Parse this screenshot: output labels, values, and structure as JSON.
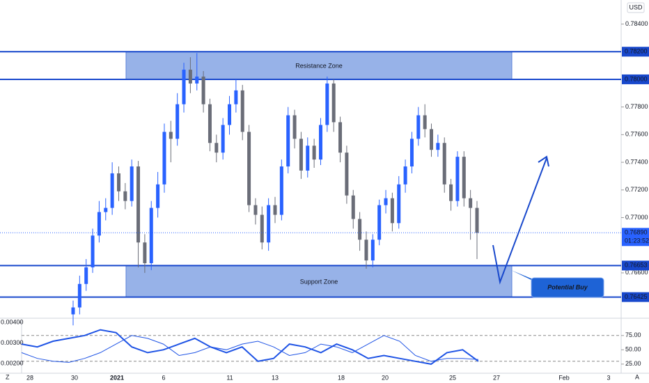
{
  "chart_data": [
    {
      "type": "candlestick",
      "currency": "USD",
      "ylim": [
        0.76282,
        0.78574
      ],
      "yticks": [
        {
          "value": 0.784,
          "label": "0.78400"
        },
        {
          "value": 0.778,
          "label": "0.77800"
        },
        {
          "value": 0.776,
          "label": "0.77600"
        },
        {
          "value": 0.774,
          "label": "0.77400"
        },
        {
          "value": 0.772,
          "label": "0.77200"
        },
        {
          "value": 0.77,
          "label": "0.77000"
        },
        {
          "value": 0.766,
          "label": "0.76600"
        }
      ],
      "levels": [
        {
          "value": 0.782,
          "label": "0.78200"
        },
        {
          "value": 0.78,
          "label": "0.78000"
        },
        {
          "value": 0.76653,
          "label": "0.76653"
        },
        {
          "value": 0.76425,
          "label": "0.76425"
        }
      ],
      "current_price": {
        "value": 0.7689,
        "label": "0.76890",
        "countdown": "01:23:52"
      },
      "zones": [
        {
          "name": "Resistance Zone",
          "low": 0.78,
          "high": 0.782
        },
        {
          "name": "Support Zone",
          "low": 0.76425,
          "high": 0.76653
        }
      ],
      "annotation": "Potential Buy",
      "x_labels": [
        "28",
        "30",
        "2021",
        "6",
        "11",
        "13",
        "18",
        "20",
        "25",
        "27",
        "Feb",
        "3"
      ],
      "up_color": "#2962ff",
      "down_color": "#6a6d78",
      "open": [
        0.763,
        0.7635,
        0.7652,
        0.7664,
        0.7687,
        0.7704,
        0.7707,
        0.7732,
        0.7719,
        0.7712,
        0.7737,
        0.7682,
        0.7667,
        0.7707,
        0.7724,
        0.7762,
        0.7757,
        0.7782,
        0.7807,
        0.7797,
        0.7802,
        0.7782,
        0.7754,
        0.7747,
        0.7767,
        0.7782,
        0.7792,
        0.7762,
        0.7709,
        0.7702,
        0.7682,
        0.7709,
        0.7702,
        0.7737,
        0.7774,
        0.7757,
        0.7734,
        0.7752,
        0.7742,
        0.7767,
        0.7797,
        0.7769,
        0.7747,
        0.7716,
        0.7699,
        0.7684,
        0.7669,
        0.7684,
        0.7709,
        0.7714,
        0.7696,
        0.7724,
        0.7737,
        0.7757,
        0.7774,
        0.7764,
        0.7749,
        0.7754,
        0.7724,
        0.7712,
        0.7744,
        0.7714,
        0.7707
      ],
      "high": [
        0.764,
        0.7658,
        0.767,
        0.7692,
        0.7712,
        0.7714,
        0.774,
        0.7737,
        0.7725,
        0.7742,
        0.7741,
        0.7688,
        0.7712,
        0.7733,
        0.7768,
        0.777,
        0.779,
        0.7812,
        0.7816,
        0.7819,
        0.7806,
        0.7786,
        0.776,
        0.7772,
        0.7788,
        0.78,
        0.7796,
        0.7767,
        0.7714,
        0.7708,
        0.7714,
        0.7715,
        0.7742,
        0.778,
        0.7778,
        0.7762,
        0.7758,
        0.7757,
        0.7772,
        0.7802,
        0.78,
        0.7773,
        0.7752,
        0.772,
        0.7704,
        0.769,
        0.7688,
        0.7713,
        0.772,
        0.7718,
        0.773,
        0.7742,
        0.7762,
        0.778,
        0.7782,
        0.7768,
        0.776,
        0.7758,
        0.7728,
        0.7748,
        0.7748,
        0.772,
        0.7712
      ],
      "low": [
        0.7622,
        0.763,
        0.7647,
        0.766,
        0.7682,
        0.7698,
        0.7702,
        0.7712,
        0.7706,
        0.7708,
        0.7664,
        0.766,
        0.7662,
        0.77,
        0.7718,
        0.774,
        0.7752,
        0.7776,
        0.779,
        0.7792,
        0.7776,
        0.7748,
        0.774,
        0.7742,
        0.776,
        0.7776,
        0.7756,
        0.7704,
        0.7695,
        0.7677,
        0.7676,
        0.7696,
        0.7698,
        0.7732,
        0.775,
        0.7728,
        0.7729,
        0.7736,
        0.7738,
        0.7762,
        0.7762,
        0.774,
        0.771,
        0.7692,
        0.7676,
        0.7663,
        0.7664,
        0.768,
        0.7703,
        0.769,
        0.7692,
        0.7718,
        0.7732,
        0.7752,
        0.7758,
        0.7744,
        0.7744,
        0.7718,
        0.7705,
        0.7708,
        0.7708,
        0.7684,
        0.767
      ],
      "close": [
        0.7635,
        0.7652,
        0.7664,
        0.7687,
        0.7704,
        0.7707,
        0.7732,
        0.7719,
        0.7712,
        0.7737,
        0.7682,
        0.7667,
        0.7707,
        0.7724,
        0.7762,
        0.7757,
        0.7782,
        0.7807,
        0.7797,
        0.7802,
        0.7782,
        0.7754,
        0.7747,
        0.7767,
        0.7782,
        0.7792,
        0.7762,
        0.7709,
        0.7702,
        0.7682,
        0.7709,
        0.7702,
        0.7737,
        0.7774,
        0.7757,
        0.7734,
        0.7752,
        0.7742,
        0.7767,
        0.7797,
        0.7769,
        0.7747,
        0.7716,
        0.7699,
        0.7684,
        0.7669,
        0.7684,
        0.7709,
        0.7714,
        0.7696,
        0.7724,
        0.7737,
        0.7757,
        0.7774,
        0.7764,
        0.7749,
        0.7754,
        0.7724,
        0.7712,
        0.7744,
        0.7714,
        0.7707,
        0.7689
      ]
    },
    {
      "type": "line",
      "ylim": [
        9,
        104
      ],
      "yticks": [
        {
          "value": 75,
          "label": "75.00"
        },
        {
          "value": 50,
          "label": "50.00"
        },
        {
          "value": 25,
          "label": "25.00"
        }
      ],
      "y2lim": [
        0.00153,
        0.00417
      ],
      "y2ticks": [
        {
          "value": 0.004,
          "label": "0.00400"
        },
        {
          "value": 0.003,
          "label": "0.00300"
        },
        {
          "value": 0.002,
          "label": "0.00200"
        }
      ],
      "levels": [
        75,
        30
      ],
      "series": [
        {
          "color": "#1e53e5",
          "width": 2,
          "values": [
            60,
            55,
            65,
            70,
            75,
            85,
            80,
            55,
            45,
            50,
            60,
            70,
            55,
            45,
            55,
            30,
            35,
            60,
            55,
            45,
            60,
            50,
            35,
            40,
            35,
            30,
            25,
            45,
            50,
            30
          ]
        },
        {
          "color": "#1e53e5",
          "width": 1,
          "values": [
            45,
            35,
            30,
            28,
            35,
            45,
            60,
            75,
            70,
            60,
            40,
            45,
            55,
            50,
            60,
            65,
            55,
            40,
            45,
            60,
            55,
            45,
            60,
            75,
            65,
            40,
            30,
            35,
            35,
            33
          ]
        }
      ]
    }
  ]
}
